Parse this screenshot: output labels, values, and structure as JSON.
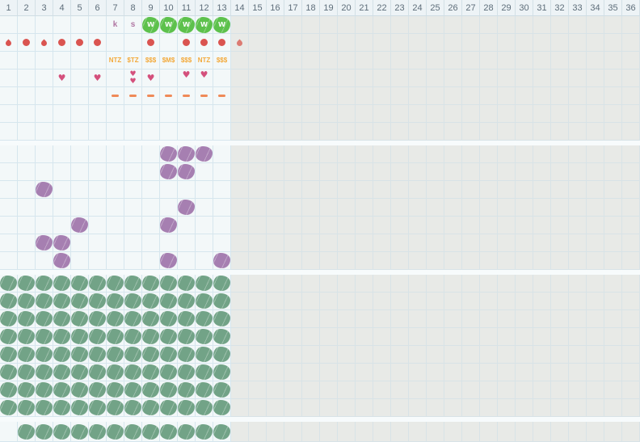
{
  "app": {
    "title": "cycle-tracking-chart"
  },
  "colors": {
    "flow_red": "#da5450",
    "flow_red_light": "#dc7b72",
    "heart_pink": "#d4507c",
    "dash_orange": "#ef8a58",
    "money_orange": "#f3a93a",
    "letter_mauve": "#b077a3",
    "badge_green": "#5dc14c",
    "mark_green": "#72a387",
    "mark_purple": "#a67fb1",
    "active_bg": "#f3f8f9",
    "future_bg": "#e8eae7",
    "header_bg": "#edf3f6"
  },
  "icons": {
    "heart": "♥"
  },
  "grid": {
    "total_columns": 36,
    "active_columns": 13,
    "header_days": [
      1,
      2,
      3,
      4,
      5,
      6,
      7,
      8,
      9,
      10,
      11,
      12,
      13,
      14,
      15,
      16,
      17,
      18,
      19,
      20,
      21,
      22,
      23,
      24,
      25,
      26,
      27,
      28,
      29,
      30,
      31,
      32,
      33,
      34,
      35,
      36
    ]
  },
  "sections": [
    {
      "name": "symptoms",
      "rows": [
        {
          "name": "letters-and-badges-row",
          "items": [
            {
              "col": 7,
              "type": "letter",
              "value": "k"
            },
            {
              "col": 8,
              "type": "letter",
              "value": "s"
            },
            {
              "col": 9,
              "type": "wbadge",
              "value": "w"
            },
            {
              "col": 10,
              "type": "wbadge",
              "value": "w"
            },
            {
              "col": 11,
              "type": "wbadge",
              "value": "w"
            },
            {
              "col": 12,
              "type": "wbadge",
              "value": "w"
            },
            {
              "col": 13,
              "type": "wbadge",
              "value": "w"
            }
          ]
        },
        {
          "name": "flow-row",
          "items": [
            {
              "col": 1,
              "type": "droplet"
            },
            {
              "col": 2,
              "type": "dot"
            },
            {
              "col": 3,
              "type": "droplet"
            },
            {
              "col": 4,
              "type": "dot"
            },
            {
              "col": 5,
              "type": "dot"
            },
            {
              "col": 6,
              "type": "dot"
            },
            {
              "col": 9,
              "type": "dot"
            },
            {
              "col": 11,
              "type": "dot"
            },
            {
              "col": 12,
              "type": "dot"
            },
            {
              "col": 13,
              "type": "dot"
            },
            {
              "col": 14,
              "type": "droplet-light"
            }
          ]
        },
        {
          "name": "code-row",
          "items": [
            {
              "col": 7,
              "type": "money",
              "value": "NTZ"
            },
            {
              "col": 8,
              "type": "money",
              "value": "$TZ"
            },
            {
              "col": 9,
              "type": "money",
              "value": "$$$"
            },
            {
              "col": 10,
              "type": "money",
              "value": "$M$"
            },
            {
              "col": 11,
              "type": "money",
              "value": "$$$"
            },
            {
              "col": 12,
              "type": "money",
              "value": "NTZ"
            },
            {
              "col": 13,
              "type": "money",
              "value": "$$$"
            }
          ]
        },
        {
          "name": "hearts-row",
          "items": [
            {
              "col": 4,
              "type": "heart",
              "variant": "single"
            },
            {
              "col": 6,
              "type": "heart",
              "variant": "single"
            },
            {
              "col": 8,
              "type": "heart",
              "variant": "double"
            },
            {
              "col": 9,
              "type": "heart",
              "variant": "single"
            },
            {
              "col": 11,
              "type": "heart",
              "variant": "top"
            },
            {
              "col": 12,
              "type": "heart",
              "variant": "top"
            }
          ]
        },
        {
          "name": "dash-row",
          "items": [
            {
              "col": 7,
              "type": "dash"
            },
            {
              "col": 8,
              "type": "dash"
            },
            {
              "col": 9,
              "type": "dash"
            },
            {
              "col": 10,
              "type": "dash"
            },
            {
              "col": 11,
              "type": "dash"
            },
            {
              "col": 12,
              "type": "dash"
            },
            {
              "col": 13,
              "type": "dash"
            }
          ]
        },
        {
          "name": "empty-row",
          "items": []
        },
        {
          "name": "empty-row",
          "items": []
        }
      ]
    },
    {
      "name": "purple-marks",
      "rows": [
        {
          "name": "purple-row",
          "type": "purple-blob",
          "cols": [
            10,
            11,
            12
          ]
        },
        {
          "name": "purple-row",
          "type": "purple-blob",
          "cols": [
            10,
            11
          ]
        },
        {
          "name": "purple-row",
          "type": "purple-blob",
          "cols": [
            3
          ]
        },
        {
          "name": "purple-row",
          "type": "purple-blob",
          "cols": [
            11
          ]
        },
        {
          "name": "purple-row",
          "type": "purple-blob",
          "cols": [
            5,
            10
          ]
        },
        {
          "name": "purple-row",
          "type": "purple-blob",
          "cols": [
            3,
            4
          ]
        },
        {
          "name": "purple-row",
          "type": "purple-blob",
          "cols": [
            4,
            10,
            13
          ]
        }
      ]
    },
    {
      "name": "green-marks",
      "rows": [
        {
          "name": "green-row",
          "type": "green-blob",
          "cols": [
            1,
            2,
            3,
            4,
            5,
            6,
            7,
            8,
            9,
            10,
            11,
            12,
            13
          ]
        },
        {
          "name": "green-row",
          "type": "green-blob",
          "cols": [
            1,
            2,
            3,
            4,
            5,
            6,
            7,
            8,
            9,
            10,
            11,
            12,
            13
          ]
        },
        {
          "name": "green-row",
          "type": "green-blob",
          "cols": [
            1,
            2,
            3,
            4,
            5,
            6,
            7,
            8,
            9,
            10,
            11,
            12,
            13
          ]
        },
        {
          "name": "green-row",
          "type": "green-blob",
          "cols": [
            1,
            2,
            3,
            4,
            5,
            6,
            7,
            8,
            9,
            10,
            11,
            12,
            13
          ]
        },
        {
          "name": "green-row",
          "type": "green-blob",
          "cols": [
            1,
            2,
            3,
            4,
            5,
            6,
            7,
            8,
            9,
            10,
            11,
            12,
            13
          ]
        },
        {
          "name": "green-row",
          "type": "green-blob",
          "cols": [
            1,
            2,
            3,
            4,
            5,
            6,
            7,
            8,
            9,
            10,
            11,
            12,
            13
          ]
        },
        {
          "name": "green-row",
          "type": "green-blob",
          "cols": [
            1,
            2,
            3,
            4,
            5,
            6,
            7,
            8,
            9,
            10,
            11,
            12,
            13
          ]
        },
        {
          "name": "green-row",
          "type": "green-blob",
          "cols": [
            1,
            2,
            3,
            4,
            5,
            6,
            7,
            8,
            9,
            10,
            11,
            12,
            13
          ]
        }
      ]
    },
    {
      "name": "green-strip",
      "css": "strip",
      "rows": [
        {
          "name": "green-row",
          "type": "green-blob",
          "cols": [
            2,
            3,
            4,
            5,
            6,
            7,
            8,
            9,
            10,
            11,
            12,
            13
          ]
        }
      ]
    }
  ]
}
